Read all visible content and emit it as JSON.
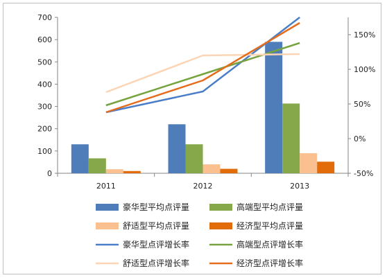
{
  "chart_data": {
    "type": "bar",
    "categories": [
      "2011",
      "2012",
      "2013"
    ],
    "y_left": {
      "min": 0,
      "max": 700,
      "step": 100,
      "ticks": [
        "0",
        "100",
        "200",
        "300",
        "400",
        "500",
        "600",
        "700"
      ]
    },
    "y_right": {
      "min": -50,
      "max": 175,
      "ticks": [
        "-50%",
        "0%",
        "50%",
        "100%",
        "150%"
      ],
      "tick_values": [
        -50,
        0,
        50,
        100,
        150
      ]
    },
    "bar_series": [
      {
        "name": "豪华型平均点评量",
        "color": "#4f7dba",
        "values": [
          130,
          220,
          590
        ]
      },
      {
        "name": "高端型平均点评量",
        "color": "#86a84a",
        "values": [
          67,
          130,
          313
        ]
      },
      {
        "name": "舒适型平均点评量",
        "color": "#fac090",
        "values": [
          18,
          40,
          90
        ]
      },
      {
        "name": "经济型平均点评量",
        "color": "#e36c0a",
        "values": [
          10,
          20,
          52
        ]
      }
    ],
    "line_series": [
      {
        "name": "豪华型点评增长率",
        "color": "#4a7ec8",
        "values": [
          38,
          68,
          175
        ]
      },
      {
        "name": "高端型点评增长率",
        "color": "#77a33f",
        "values": [
          48,
          93,
          138
        ]
      },
      {
        "name": "舒适型点评增长率",
        "color": "#fbd5b5",
        "values": [
          67,
          120,
          122
        ]
      },
      {
        "name": "经济型点评增长率",
        "color": "#e46c1d",
        "values": [
          38,
          84,
          167
        ]
      }
    ],
    "legend_position": "bottom",
    "grid": false
  }
}
